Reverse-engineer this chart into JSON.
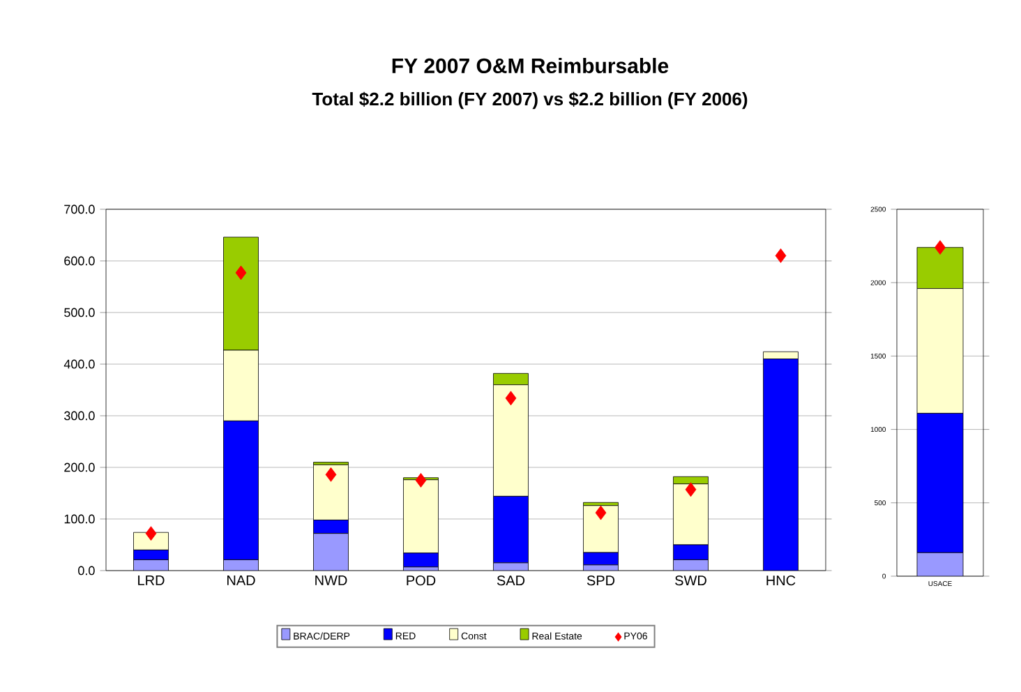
{
  "chart_data": [
    {
      "type": "bar",
      "title": "FY 2007 O&M Reimbursable",
      "subtitle": "Total $2.2 billion (FY 2007) vs $2.2 billion (FY 2006)",
      "stacked": true,
      "categories": [
        "LRD",
        "NAD",
        "NWD",
        "POD",
        "SAD",
        "SPD",
        "SWD",
        "HNC"
      ],
      "series": [
        {
          "name": "BRAC/DERP",
          "color": "#9999ff",
          "values": [
            21,
            21,
            72,
            7,
            15,
            11,
            21,
            0
          ]
        },
        {
          "name": "RED",
          "color": "#0000ff",
          "values": [
            19,
            269,
            26,
            27,
            129,
            24,
            29,
            410
          ]
        },
        {
          "name": "Const",
          "color": "#ffffcc",
          "values": [
            34,
            137,
            107,
            142,
            216,
            91,
            118,
            14
          ]
        },
        {
          "name": "Real Estate",
          "color": "#99cc00",
          "values": [
            0,
            219,
            5,
            4,
            22,
            6,
            14,
            0
          ]
        },
        {
          "name": "PY06",
          "type": "scatter",
          "color": "#ff0000",
          "values": [
            72,
            577,
            186,
            175,
            334,
            112,
            157,
            610
          ]
        }
      ],
      "marker": "diamond",
      "ylim": [
        0,
        700
      ],
      "yticks": [
        {
          "value": 0,
          "label": "0.0"
        },
        {
          "value": 100,
          "label": "100.0"
        },
        {
          "value": 200,
          "label": "200.0"
        },
        {
          "value": 300,
          "label": "300.0"
        },
        {
          "value": 400,
          "label": "400.0"
        },
        {
          "value": 500,
          "label": "500.0"
        },
        {
          "value": 600,
          "label": "600.0"
        },
        {
          "value": 700,
          "label": "700.0"
        }
      ],
      "grid": "y",
      "legend": "bottom"
    },
    {
      "type": "bar",
      "stacked": true,
      "categories": [
        "USACE"
      ],
      "series": [
        {
          "color": "#9999ff",
          "values": [
            160
          ]
        },
        {
          "color": "#0000ff",
          "values": [
            950
          ]
        },
        {
          "color": "#ffffcc",
          "values": [
            850
          ]
        },
        {
          "color": "#99cc00",
          "values": [
            280
          ]
        },
        {
          "type": "scatter",
          "color": "#ff0000",
          "values": [
            2240
          ]
        }
      ],
      "marker": "diamond",
      "ylim": [
        0,
        2500
      ],
      "yticks": [
        0,
        500,
        1000,
        1500,
        2000,
        2500
      ],
      "grid": "y"
    }
  ]
}
